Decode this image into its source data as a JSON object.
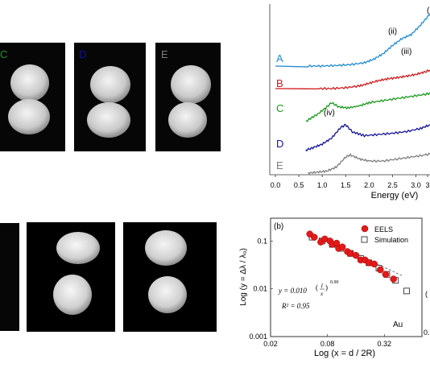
{
  "colors": {
    "A": "#1f8ad6",
    "B": "#d0191c",
    "C": "#199a1b",
    "D": "#13129a",
    "E": "#7d7d7d",
    "marker_eels": "#e21a1a"
  },
  "images_top": [
    {
      "label": "C",
      "color": "#199a1b"
    },
    {
      "label": "D",
      "color": "#13129a"
    },
    {
      "label": "E",
      "color": "#7d7d7d"
    }
  ],
  "chart_data": [
    {
      "type": "line",
      "xlabel": "Energy (eV)",
      "xticks": [
        "0.0",
        "0.5",
        "1.0",
        "1.5",
        "2.0",
        "2.5",
        "3.0",
        "3"
      ],
      "xlim": [
        0.0,
        3.3
      ],
      "series": [
        {
          "name": "A",
          "x": [
            0.7,
            1.0,
            1.3,
            1.6,
            1.9,
            2.1,
            2.3,
            2.5,
            2.7,
            2.9,
            3.1,
            3.3
          ],
          "y": [
            0.0,
            0.0,
            0.02,
            0.05,
            0.12,
            0.25,
            0.45,
            0.75,
            1.0,
            1.15,
            1.5,
            1.9
          ]
        },
        {
          "name": "B",
          "x": [
            0.9,
            1.2,
            1.5,
            1.8,
            2.0,
            2.2,
            2.4,
            2.6,
            2.8,
            3.0,
            3.2,
            3.3
          ],
          "y": [
            0.0,
            0.0,
            0.05,
            0.15,
            0.3,
            0.45,
            0.55,
            0.62,
            0.7,
            0.8,
            0.95,
            1.05
          ]
        },
        {
          "name": "C",
          "x": [
            0.65,
            0.75,
            0.9,
            1.1,
            1.2,
            1.35,
            1.55,
            1.8,
            2.0,
            2.3,
            2.6,
            2.9,
            3.2,
            3.3
          ],
          "y": [
            -0.15,
            0.0,
            0.2,
            0.55,
            0.75,
            0.55,
            0.5,
            0.6,
            0.75,
            0.85,
            0.95,
            1.05,
            1.15,
            1.2
          ]
        },
        {
          "name": "D",
          "x": [
            0.65,
            0.8,
            1.0,
            1.2,
            1.4,
            1.5,
            1.65,
            1.9,
            2.2,
            2.5,
            2.8,
            3.1,
            3.3
          ],
          "y": [
            -0.05,
            0.05,
            0.2,
            0.45,
            0.9,
            1.0,
            0.7,
            0.55,
            0.6,
            0.65,
            0.72,
            0.85,
            1.0
          ]
        },
        {
          "name": "E",
          "x": [
            0.7,
            0.9,
            1.1,
            1.3,
            1.5,
            1.6,
            1.8,
            2.0,
            2.3,
            2.6,
            2.9,
            3.2,
            3.3
          ],
          "y": [
            0.0,
            0.05,
            0.1,
            0.3,
            0.8,
            0.9,
            0.7,
            0.6,
            0.6,
            0.7,
            0.8,
            0.9,
            0.95
          ]
        }
      ],
      "annotations": [
        "(ii)",
        "(iii)",
        "(iv)",
        "("
      ]
    },
    {
      "type": "scatter",
      "panel_label": "(b)",
      "xlabel": "Log (x =  d / 2R)",
      "ylabel": "Log (y =  Δλ / λ₀)",
      "xticks": [
        "0.02",
        "0.08",
        "0.32"
      ],
      "yticks": [
        "0.1",
        "0.01",
        "0.001"
      ],
      "xlim": [
        0.02,
        0.8
      ],
      "ylim": [
        0.001,
        0.3
      ],
      "log_scale": true,
      "legend": [
        "EELS",
        "Simulation"
      ],
      "legend_position": "top-right",
      "material": "Au",
      "fit_equation": "y = 0.010 (1/x)^0.90",
      "r_squared": "R² = 0.95",
      "series": [
        {
          "name": "EELS",
          "marker": "circle",
          "x": [
            0.052,
            0.058,
            0.068,
            0.075,
            0.085,
            0.09,
            0.1,
            0.105,
            0.115,
            0.13,
            0.14,
            0.16,
            0.18,
            0.2,
            0.22,
            0.25,
            0.29,
            0.33,
            0.4
          ],
          "y": [
            0.14,
            0.12,
            0.095,
            0.11,
            0.1,
            0.085,
            0.09,
            0.07,
            0.075,
            0.06,
            0.055,
            0.05,
            0.04,
            0.04,
            0.035,
            0.033,
            0.025,
            0.02,
            0.016
          ]
        },
        {
          "name": "Simulation",
          "marker": "square",
          "x": [
            0.055,
            0.07,
            0.09,
            0.11,
            0.14,
            0.18,
            0.22,
            0.28,
            0.34,
            0.42,
            0.55
          ],
          "y": [
            0.12,
            0.1,
            0.085,
            0.07,
            0.055,
            0.043,
            0.035,
            0.027,
            0.02,
            0.015,
            0.009
          ]
        }
      ]
    }
  ],
  "edge_fragment": {
    "right_top": "(",
    "right_bottom": "0.",
    "right_mid": "("
  }
}
